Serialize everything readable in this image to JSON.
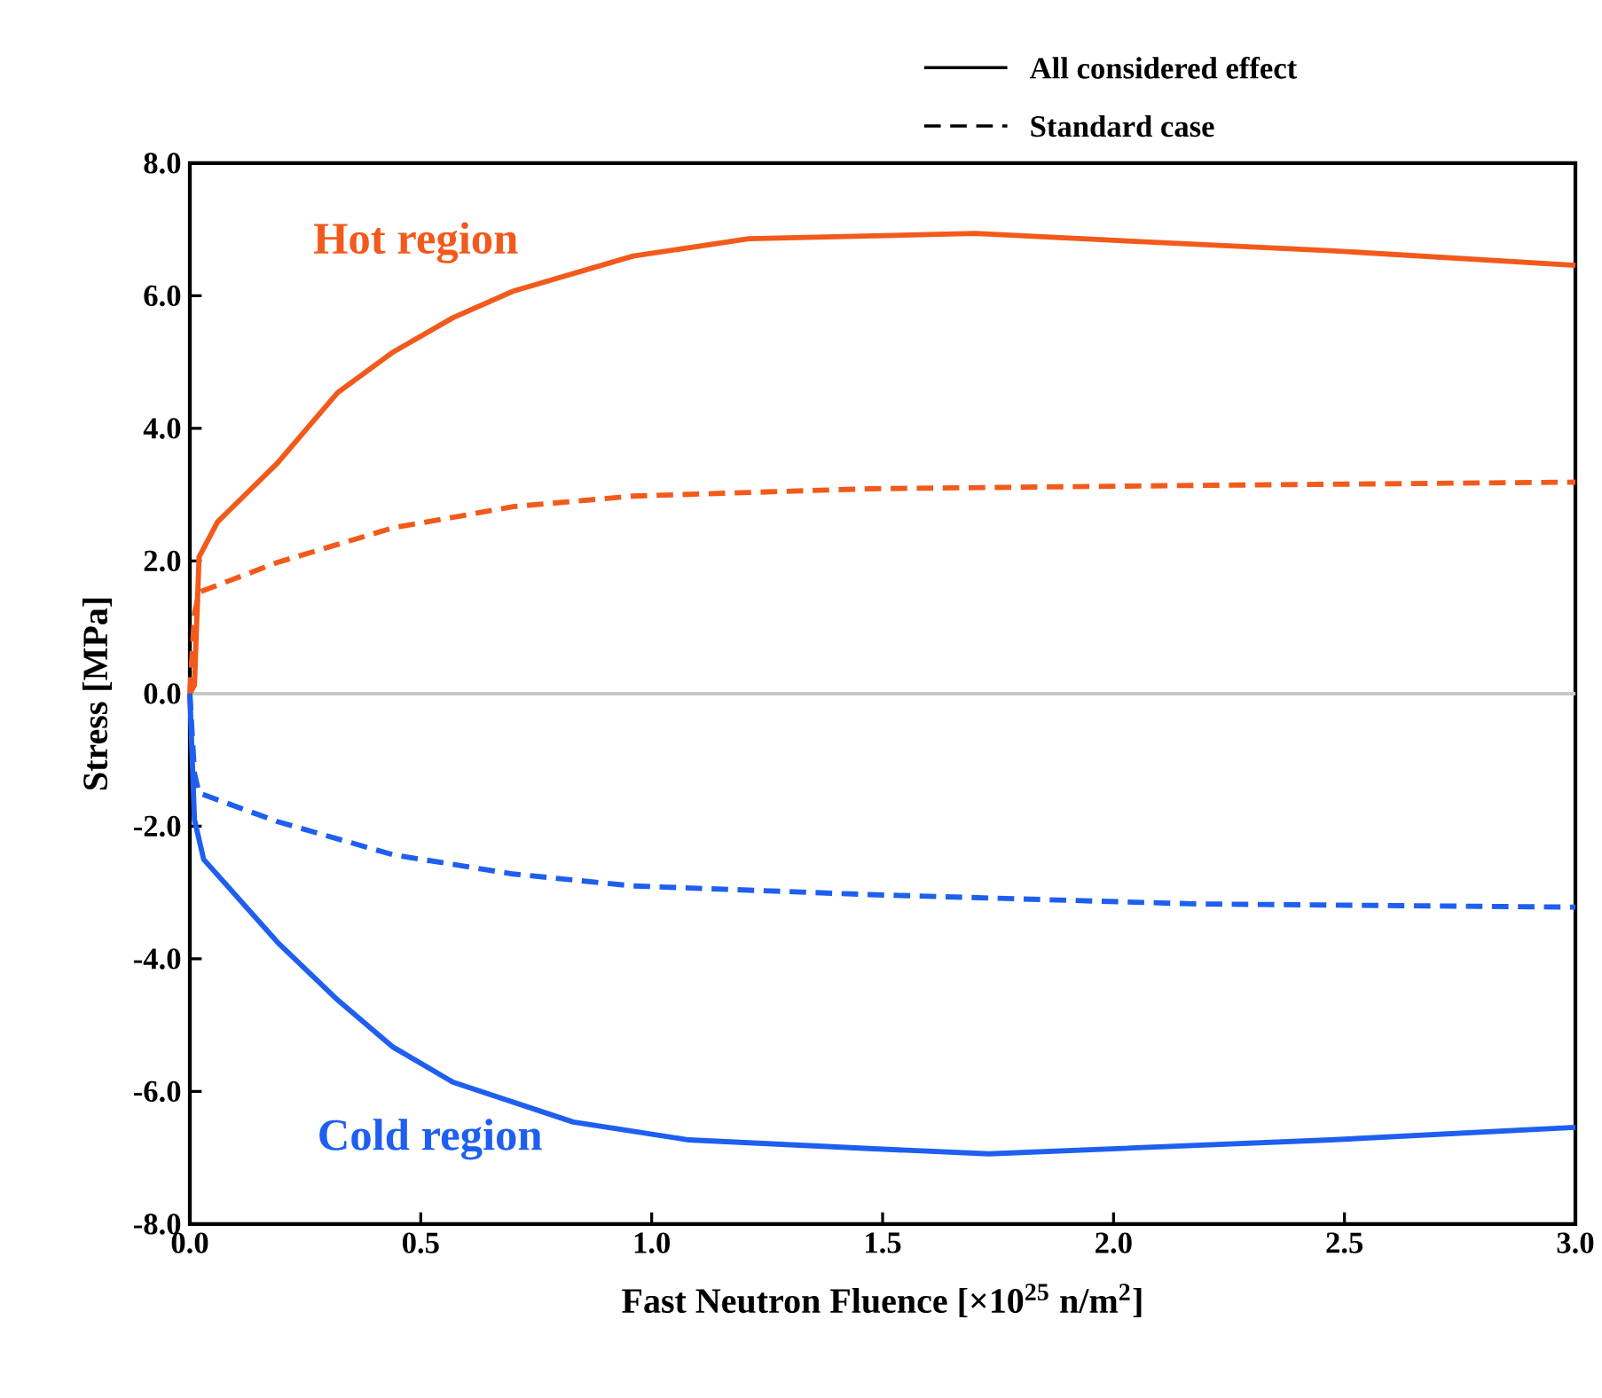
{
  "chart_data": {
    "type": "line",
    "xlabel": "Fast Neutron Fluence [×10$^{25}$ n/m$^{2}$]",
    "ylabel": "Stress [MPa]",
    "xlim": [
      0,
      3.0
    ],
    "ylim": [
      -8.0,
      8.0
    ],
    "xticks": [
      {
        "value": 0,
        "label": "0.0"
      },
      0.5,
      {
        "value": 1,
        "label": "1.0"
      },
      1.5,
      {
        "value": 2,
        "label": "2.0"
      },
      2.5,
      {
        "value": 3,
        "label": "3.0"
      }
    ],
    "yticks": [
      {
        "value": -8,
        "label": "-8.0"
      },
      {
        "value": -6,
        "label": "-6.0"
      },
      {
        "value": -4,
        "label": "-4.0"
      },
      {
        "value": -2,
        "label": "-2.0"
      },
      {
        "value": 0,
        "label": "0.0"
      },
      {
        "value": 2,
        "label": "2.0"
      },
      {
        "value": 4,
        "label": "4.0"
      },
      {
        "value": 6,
        "label": "6.0"
      },
      {
        "value": 8,
        "label": "8.0"
      }
    ],
    "grid": false,
    "series": [
      {
        "color": "#f25a1c",
        "line_style": "solid",
        "x": [
          0,
          0.01,
          0.02,
          0.06,
          0.19,
          0.32,
          0.44,
          0.57,
          0.7,
          0.96,
          1.21,
          1.7,
          2.02,
          2.47,
          3.0
        ],
        "values": [
          0,
          0.13,
          2.06,
          2.59,
          3.48,
          4.54,
          5.15,
          5.67,
          6.07,
          6.6,
          6.86,
          6.94,
          6.83,
          6.68,
          6.46
        ]
      },
      {
        "color": "#f25a1c",
        "line_style": "dashed",
        "x": [
          0,
          0.01,
          0.02,
          0.19,
          0.44,
          0.7,
          0.96,
          1.47,
          2.17,
          3.0
        ],
        "values": [
          0,
          1.2,
          1.53,
          1.98,
          2.5,
          2.82,
          2.98,
          3.09,
          3.14,
          3.19
        ]
      },
      {
        "color": "#1f5ff0",
        "line_style": "solid",
        "x": [
          0,
          0.01,
          0.03,
          0.19,
          0.32,
          0.44,
          0.57,
          0.83,
          1.08,
          1.47,
          1.73,
          2.47,
          3.0
        ],
        "values": [
          0,
          -1.9,
          -2.5,
          -3.75,
          -4.62,
          -5.33,
          -5.86,
          -6.46,
          -6.73,
          -6.86,
          -6.94,
          -6.73,
          -6.54
        ]
      },
      {
        "color": "#1f5ff0",
        "line_style": "dashed",
        "x": [
          0,
          0.01,
          0.02,
          0.19,
          0.44,
          0.7,
          0.96,
          1.47,
          2.17,
          3.0
        ],
        "values": [
          0,
          -1.2,
          -1.5,
          -1.93,
          -2.43,
          -2.72,
          -2.9,
          -3.03,
          -3.17,
          -3.22
        ]
      }
    ],
    "ref_lines": [
      {
        "axis": "y",
        "value": 0,
        "color": "#c8c8c8"
      }
    ],
    "annotations": [
      "All considered effect",
      "Standard case",
      "Hot region",
      "Cold region"
    ]
  }
}
